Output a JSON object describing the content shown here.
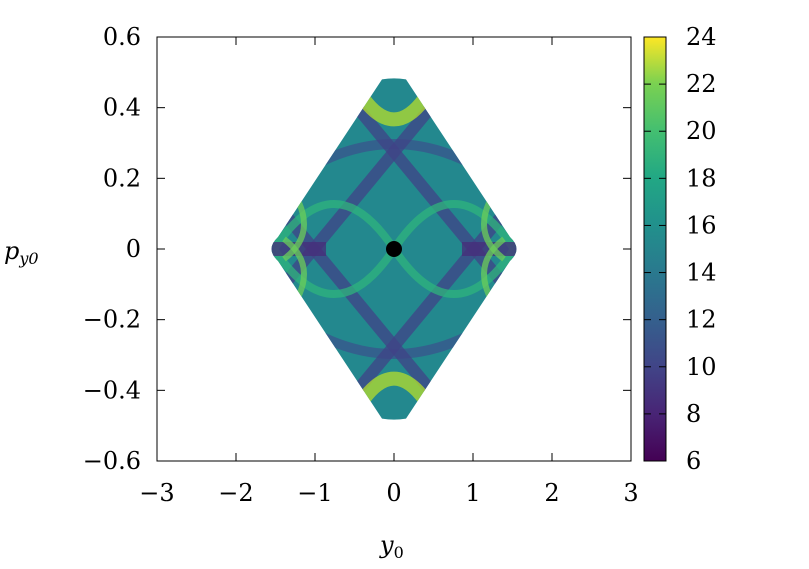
{
  "chart_data": {
    "type": "heatmap",
    "title": "",
    "xlabel": "y",
    "xlabel_sub": "0",
    "ylabel": "p",
    "ylabel_sub": "y0",
    "xlim": [
      -3,
      3
    ],
    "ylim": [
      -0.6,
      0.6
    ],
    "x_ticks": [
      -3,
      -2,
      -1,
      0,
      1,
      2,
      3
    ],
    "x_tick_labels": [
      "−3",
      "−2",
      "−1",
      "0",
      "1",
      "2",
      "3"
    ],
    "y_ticks": [
      -0.6,
      -0.4,
      -0.2,
      0,
      0.2,
      0.4,
      0.6
    ],
    "y_tick_labels": [
      "−0.6",
      "−0.4",
      "−0.2",
      "0",
      "0.2",
      "0.4",
      "0.6"
    ],
    "colorbar": {
      "min": 6,
      "max": 24,
      "ticks": [
        6,
        8,
        10,
        12,
        14,
        16,
        18,
        20,
        22,
        24
      ],
      "tick_labels": [
        "6",
        "8",
        "10",
        "12",
        "14",
        "16",
        "18",
        "20",
        "22",
        "24"
      ],
      "colormap": "viridis"
    },
    "region": {
      "shape": "rounded-diamond",
      "x_extent": [
        -1.62,
        1.62
      ],
      "y_extent": [
        -0.48,
        0.48
      ]
    },
    "marker": {
      "x": 0,
      "y": 0,
      "color": "#000000"
    },
    "grid": false,
    "legend": "none"
  }
}
